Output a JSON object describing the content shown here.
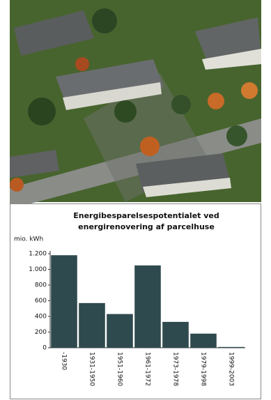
{
  "chart_data": {
    "type": "bar",
    "title": [
      "Energibesparelsespotentialet ved",
      "energirenovering af parcelhuse"
    ],
    "y_label": "mio. kWh",
    "categories": [
      "-1930",
      "1931-1950",
      "1951-1960",
      "1961-1972",
      "1973-1978",
      "1979-1998",
      "1999-2003"
    ],
    "values": [
      1180,
      570,
      430,
      1050,
      330,
      180,
      10
    ],
    "color": "#2f4a4e",
    "ylim": [
      0,
      1200
    ],
    "yticks": [
      0,
      200,
      400,
      600,
      800,
      {
        "value": 1000,
        "label": "1.000"
      },
      {
        "value": 1200,
        "label": "1.200"
      }
    ]
  }
}
